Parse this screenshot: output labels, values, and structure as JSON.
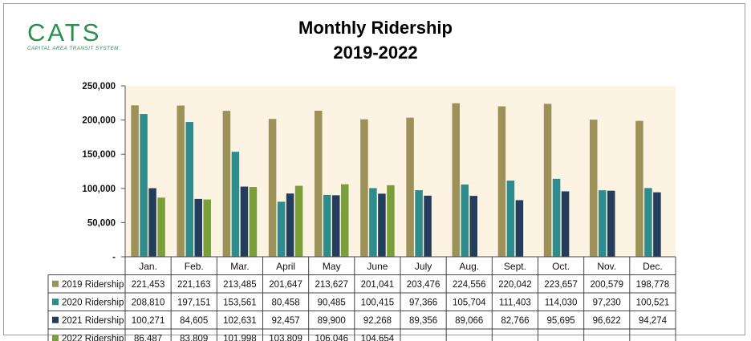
{
  "logo": {
    "text": "CATS",
    "subtitle": "CAPITAL AREA TRANSIT SYSTEM"
  },
  "title": "Monthly Ridership",
  "subtitle": "2019-2022",
  "colors": {
    "plot_bg": "#fdf3e3",
    "s2019": "#9c9159",
    "s2020": "#2e8c8c",
    "s2021": "#253d5c",
    "s2022": "#7a9e3a"
  },
  "chart_data": {
    "type": "bar",
    "title": "Monthly Ridership",
    "subtitle": "2019-2022",
    "categories": [
      "Jan.",
      "Feb.",
      "Mar.",
      "April",
      "May",
      "June",
      "July",
      "Aug.",
      "Sept.",
      "Oct.",
      "Nov.",
      "Dec."
    ],
    "ylim": [
      0,
      250000
    ],
    "yticks": [
      0,
      50000,
      100000,
      150000,
      200000,
      250000
    ],
    "ytick_labels": [
      "-",
      "50,000",
      "100,000",
      "150,000",
      "200,000",
      "250,000"
    ],
    "grid": false,
    "legend": "data-table",
    "series": [
      {
        "name": "2019 Ridership",
        "color": "#9c9159",
        "values": [
          221453,
          221163,
          213485,
          201647,
          213627,
          201041,
          203476,
          224556,
          220042,
          223657,
          200579,
          198778
        ]
      },
      {
        "name": "2020 Ridership",
        "color": "#2e8c8c",
        "values": [
          208810,
          197151,
          153561,
          80458,
          90485,
          100415,
          97366,
          105704,
          111403,
          114030,
          97230,
          100521
        ]
      },
      {
        "name": "2021 Ridership",
        "color": "#253d5c",
        "values": [
          100271,
          84605,
          102631,
          92457,
          89900,
          92268,
          89356,
          89066,
          82766,
          95695,
          96622,
          94274
        ]
      },
      {
        "name": "2022 Ridership",
        "color": "#7a9e3a",
        "values": [
          86487,
          83809,
          101998,
          103809,
          106046,
          104654,
          null,
          null,
          null,
          null,
          null,
          null
        ]
      }
    ]
  }
}
